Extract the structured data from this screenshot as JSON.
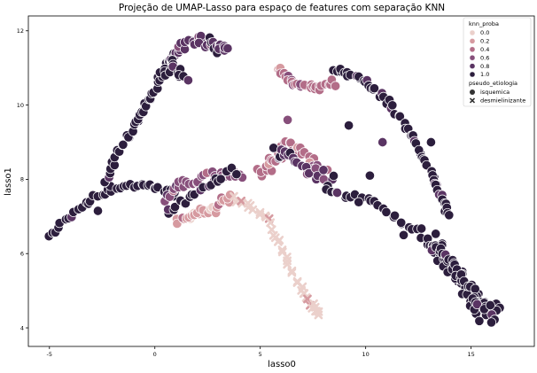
{
  "chart_data": {
    "type": "scatter",
    "title": "Projeção de UMAP-Lasso para espaço de features com separação KNN",
    "xlabel": "lasso0",
    "ylabel": "lasso1",
    "xlim": [
      -6,
      18
    ],
    "ylim": [
      3.5,
      12.4
    ],
    "xticks": [
      -5,
      0,
      5,
      10,
      15
    ],
    "yticks": [
      4,
      6,
      8,
      10,
      12
    ],
    "grid": false,
    "legend_position": "top-right",
    "hue": {
      "title": "knn_proba",
      "values": [
        0.0,
        0.2,
        0.4,
        0.6,
        0.8,
        1.0
      ],
      "labels": [
        "0.0",
        "0.2",
        "0.4",
        "0.6",
        "0.8",
        "1.0"
      ],
      "colors": [
        "#ebd0cb",
        "#d69aa0",
        "#b36d88",
        "#874f7b",
        "#5a3463",
        "#2c1e3d"
      ]
    },
    "style": {
      "title": "pseudo_etiologia",
      "labels": [
        "isquemica",
        "desmielinizante"
      ],
      "markers": [
        "circle",
        "x"
      ]
    },
    "segments": [
      {
        "name": "left-arm-lower",
        "marker": "circle",
        "proba": 1.0,
        "n": 40,
        "spread": 0.15,
        "path": [
          [
            -5.1,
            6.45
          ],
          [
            -4.0,
            7.0
          ],
          [
            -3.0,
            7.45
          ],
          [
            -2.0,
            7.75
          ],
          [
            -1.0,
            7.85
          ],
          [
            0.0,
            7.8
          ],
          [
            1.0,
            7.6
          ]
        ]
      },
      {
        "name": "left-arm-upper",
        "marker": "circle",
        "proba": 1.0,
        "n": 46,
        "spread": 0.16,
        "path": [
          [
            -2.5,
            7.8
          ],
          [
            -1.8,
            8.6
          ],
          [
            -1.0,
            9.4
          ],
          [
            -0.4,
            10.0
          ],
          [
            0.2,
            10.7
          ],
          [
            0.7,
            11.2
          ]
        ]
      },
      {
        "name": "top-lobe",
        "marker": "circle",
        "proba": 0.8,
        "n": 40,
        "spread": 0.22,
        "path": [
          [
            0.7,
            11.2
          ],
          [
            1.2,
            11.55
          ],
          [
            2.0,
            11.8
          ],
          [
            2.8,
            11.6
          ],
          [
            3.4,
            11.5
          ]
        ]
      },
      {
        "name": "top-lobe-dark",
        "marker": "circle",
        "proba": 1.0,
        "n": 18,
        "spread": 0.25,
        "path": [
          [
            0.3,
            10.9
          ],
          [
            0.8,
            11.0
          ],
          [
            1.4,
            10.8
          ]
        ]
      },
      {
        "name": "center-arc",
        "marker": "circle",
        "proba": 0.6,
        "n": 32,
        "spread": 0.2,
        "path": [
          [
            0.5,
            7.5
          ],
          [
            1.2,
            7.8
          ],
          [
            2.2,
            8.0
          ],
          [
            3.2,
            8.1
          ],
          [
            4.1,
            8.05
          ]
        ]
      },
      {
        "name": "center-arc-light",
        "marker": "circle",
        "proba": 0.2,
        "n": 30,
        "spread": 0.18,
        "path": [
          [
            1.0,
            6.85
          ],
          [
            1.8,
            7.05
          ],
          [
            2.8,
            7.2
          ],
          [
            3.6,
            7.5
          ]
        ]
      },
      {
        "name": "center-arc-dark",
        "marker": "circle",
        "proba": 1.0,
        "n": 20,
        "spread": 0.2,
        "path": [
          [
            0.6,
            7.2
          ],
          [
            1.5,
            7.4
          ],
          [
            2.6,
            7.9
          ],
          [
            3.8,
            8.25
          ]
        ]
      },
      {
        "name": "middle-cluster",
        "marker": "circle",
        "proba": 0.4,
        "n": 38,
        "spread": 0.28,
        "path": [
          [
            4.9,
            8.1
          ],
          [
            5.6,
            8.5
          ],
          [
            6.2,
            9.0
          ],
          [
            7.0,
            8.7
          ],
          [
            8.0,
            8.2
          ]
        ]
      },
      {
        "name": "middle-cluster-dark",
        "marker": "circle",
        "proba": 0.8,
        "n": 24,
        "spread": 0.25,
        "path": [
          [
            5.6,
            8.8
          ],
          [
            6.4,
            8.6
          ],
          [
            7.3,
            8.2
          ],
          [
            8.4,
            8.0
          ]
        ]
      },
      {
        "name": "right-band-pink",
        "marker": "circle",
        "proba": 0.4,
        "n": 30,
        "spread": 0.18,
        "path": [
          [
            5.8,
            11.0
          ],
          [
            6.5,
            10.6
          ],
          [
            7.5,
            10.4
          ],
          [
            8.5,
            10.6
          ]
        ]
      },
      {
        "name": "right-band",
        "marker": "circle",
        "proba": 1.0,
        "n": 60,
        "spread": 0.14,
        "path": [
          [
            8.5,
            10.9
          ],
          [
            9.5,
            10.8
          ],
          [
            10.5,
            10.4
          ],
          [
            11.4,
            9.8
          ],
          [
            12.3,
            9.1
          ],
          [
            13.0,
            8.3
          ],
          [
            13.5,
            7.6
          ],
          [
            14.0,
            7.0
          ]
        ]
      },
      {
        "name": "lower-diagonal",
        "marker": "circle",
        "proba": 1.0,
        "n": 56,
        "spread": 0.18,
        "path": [
          [
            8.0,
            7.8
          ],
          [
            9.5,
            7.5
          ],
          [
            11.0,
            7.2
          ],
          [
            12.5,
            6.6
          ],
          [
            13.5,
            5.9
          ],
          [
            14.4,
            5.3
          ],
          [
            15.5,
            4.7
          ],
          [
            16.3,
            4.5
          ]
        ]
      },
      {
        "name": "right-blob",
        "marker": "circle",
        "proba": 1.0,
        "n": 62,
        "spread": 0.45,
        "path": [
          [
            13.2,
            6.4
          ],
          [
            13.8,
            5.8
          ],
          [
            14.6,
            5.3
          ],
          [
            15.3,
            4.8
          ],
          [
            15.8,
            4.2
          ]
        ]
      },
      {
        "name": "desmielinizante-cluster",
        "marker": "x",
        "proba": 0.0,
        "n": 42,
        "spread": 0.14,
        "path": [
          [
            3.7,
            7.5
          ],
          [
            4.6,
            7.25
          ],
          [
            5.4,
            6.9
          ],
          [
            5.9,
            6.3
          ],
          [
            6.4,
            5.6
          ],
          [
            7.0,
            5.0
          ],
          [
            7.5,
            4.6
          ],
          [
            7.8,
            4.4
          ]
        ]
      }
    ],
    "outliers": [
      {
        "x": 9.2,
        "y": 9.45,
        "proba": 1.0
      },
      {
        "x": 10.8,
        "y": 9.0,
        "proba": 0.8
      },
      {
        "x": 13.1,
        "y": 9.0,
        "proba": 1.0
      },
      {
        "x": 6.3,
        "y": 9.6,
        "proba": 0.6
      },
      {
        "x": 10.2,
        "y": 8.1,
        "proba": 1.0
      },
      {
        "x": -2.7,
        "y": 7.15,
        "proba": 1.0
      },
      {
        "x": 11.8,
        "y": 6.5,
        "proba": 1.0
      }
    ]
  }
}
